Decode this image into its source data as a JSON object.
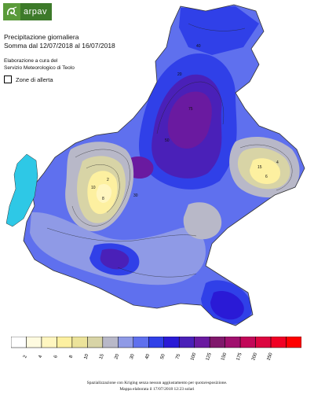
{
  "logo": {
    "text": "arpav",
    "icon": "ram-logo-icon",
    "color": "#3d7a2a"
  },
  "header": {
    "title_line1": "Precipitazione giornaliera",
    "title_line2": "Somma dal 12/07/2018 al 16/07/2018",
    "credit_line1": "Elaborazione a cura del",
    "credit_line2": "Servizio Meteorologico di Teolo",
    "alert_label": "Zone di allerta"
  },
  "legend": {
    "colors": [
      "#ffffff",
      "#fffbe0",
      "#fff6c0",
      "#fdf0a0",
      "#ece39a",
      "#d8d4a6",
      "#b8b8c8",
      "#8f9ae6",
      "#5f70ee",
      "#3040e8",
      "#2a1ad6",
      "#4a20b8",
      "#6a1aa0",
      "#80186c",
      "#a0106e",
      "#c20858",
      "#dc0640",
      "#f00024",
      "#ff0000"
    ],
    "labels": [
      "2",
      "4",
      "6",
      "8",
      "10",
      "15",
      "20",
      "30",
      "40",
      "50",
      "75",
      "100",
      "125",
      "150",
      "175",
      "200",
      "250"
    ],
    "lake_color": "#2ec8e6"
  },
  "map_labels": [
    "20",
    "40",
    "30",
    "50",
    "75",
    "10",
    "15",
    "8",
    "6",
    "4",
    "2"
  ],
  "footer": {
    "line1": "Spazializzazione con Kriging senza nessun aggiustamento per quota/esposizione.",
    "line2": "Mappa elaborata il 17/07/2018 12:23 solari"
  }
}
